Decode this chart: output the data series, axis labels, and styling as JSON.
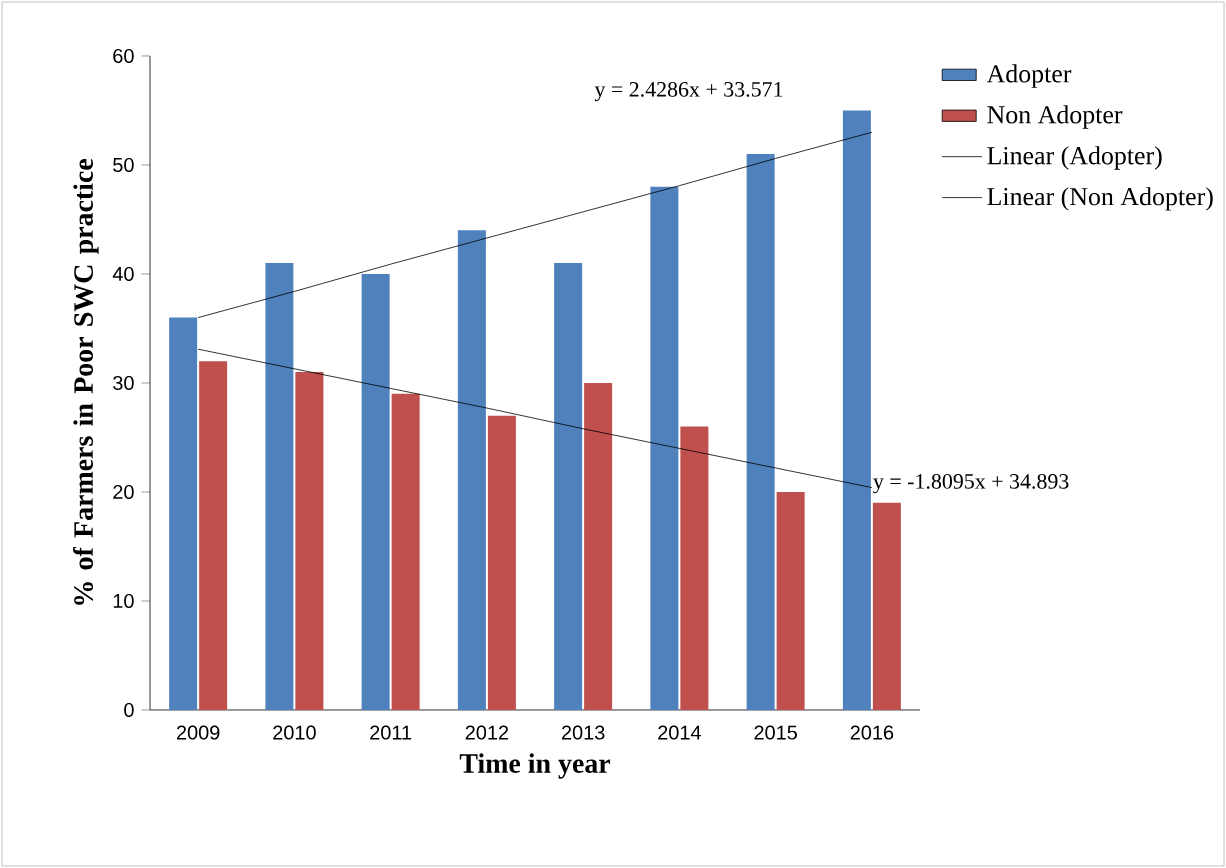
{
  "chart_data": {
    "type": "bar",
    "xlabel": "Time in year",
    "ylabel": "% of Farmers in Poor SWC practice",
    "categories": [
      "2009",
      "2010",
      "2011",
      "2012",
      "2013",
      "2014",
      "2015",
      "2016"
    ],
    "series": [
      {
        "name": "Adopter",
        "color": "#4f81bd",
        "values": [
          36,
          41,
          40,
          44,
          41,
          48,
          51,
          55
        ]
      },
      {
        "name": "Non Adopter",
        "color": "#c0504d",
        "values": [
          32,
          31,
          29,
          27,
          30,
          26,
          20,
          19
        ]
      },
      {
        "name": "Linear (Adopter)",
        "type": "line",
        "color": "#000000",
        "values": [
          36.0,
          38.4,
          40.9,
          43.3,
          45.7,
          48.1,
          50.6,
          53.0
        ]
      },
      {
        "name": "Linear (Non Adopter)",
        "type": "line",
        "color": "#000000",
        "values": [
          33.1,
          31.3,
          29.5,
          27.7,
          25.8,
          24.0,
          22.2,
          20.4
        ]
      }
    ],
    "annotations": [
      "y = 2.4286x + 33.571",
      {
        "text": "y = -1.8095x + 34.893",
        "x": "2016",
        "y": 20.4
      }
    ],
    "ylim": [
      0,
      60
    ],
    "yticks": [
      0,
      10,
      20,
      30,
      40,
      50,
      60
    ],
    "legend": "top right",
    "marker": "none"
  }
}
